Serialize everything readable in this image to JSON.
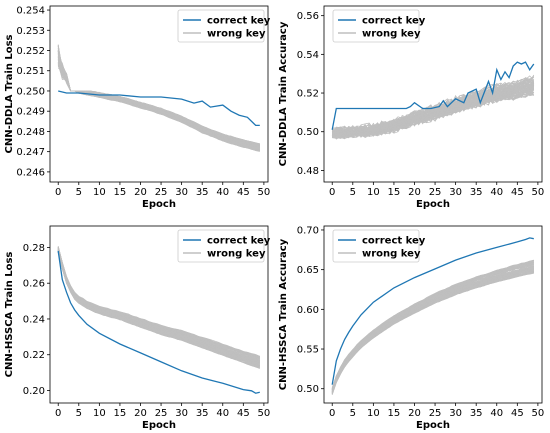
{
  "chart_data": [
    {
      "type": "line",
      "xlabel": "Epoch",
      "ylabel": "CNN-DDLA Train Loss",
      "xlim": [
        -2,
        51
      ],
      "ylim": [
        0.2455,
        0.2542
      ],
      "xticks": [
        0,
        5,
        10,
        15,
        20,
        25,
        30,
        35,
        40,
        45,
        50
      ],
      "yticks": [
        0.246,
        0.247,
        0.248,
        0.249,
        0.25,
        0.251,
        0.252,
        0.253,
        0.254
      ],
      "ytick_labels": [
        "0.246",
        "0.247",
        "0.248",
        "0.249",
        "0.250",
        "0.251",
        "0.252",
        "0.253",
        "0.254"
      ],
      "legend": "top-right",
      "grid": false,
      "series": [
        {
          "name": "correct key",
          "color": "#1f77b4",
          "x": [
            0,
            2,
            5,
            10,
            15,
            20,
            25,
            30,
            33,
            35,
            37,
            40,
            42,
            44,
            46,
            48,
            49
          ],
          "y": [
            0.25,
            0.2499,
            0.2499,
            0.2498,
            0.2498,
            0.2497,
            0.2497,
            0.2496,
            0.2494,
            0.2495,
            0.2492,
            0.2493,
            0.249,
            0.2488,
            0.2487,
            0.2483,
            0.2483
          ]
        },
        {
          "name": "wrong key",
          "color": "#bfbfbf",
          "x": [
            0,
            1,
            3,
            5,
            10,
            15,
            20,
            25,
            30,
            35,
            40,
            45,
            49
          ],
          "y": [
            0.2515,
            0.2508,
            0.2503,
            0.25,
            0.2498,
            0.2496,
            0.2493,
            0.249,
            0.2486,
            0.2481,
            0.2477,
            0.2474,
            0.2472
          ]
        }
      ]
    },
    {
      "type": "line",
      "xlabel": "Epoch",
      "ylabel": "CNN-DDLA Train Accuracy",
      "xlim": [
        -2,
        51
      ],
      "ylim": [
        0.474,
        0.565
      ],
      "xticks": [
        0,
        5,
        10,
        15,
        20,
        25,
        30,
        35,
        40,
        45,
        50
      ],
      "yticks": [
        0.48,
        0.5,
        0.52,
        0.54,
        0.56
      ],
      "ytick_labels": [
        "0.48",
        "0.50",
        "0.52",
        "0.54",
        "0.56"
      ],
      "legend": "top-center",
      "grid": false,
      "series": [
        {
          "name": "correct key",
          "color": "#1f77b4",
          "x": [
            0,
            1,
            2,
            5,
            10,
            15,
            18,
            19,
            20,
            22,
            24,
            26,
            27,
            28,
            30,
            32,
            33,
            35,
            36,
            38,
            39,
            40,
            41,
            42,
            43,
            44,
            45,
            46,
            47,
            48,
            49
          ],
          "y": [
            0.501,
            0.512,
            0.512,
            0.512,
            0.512,
            0.512,
            0.512,
            0.513,
            0.515,
            0.512,
            0.512,
            0.513,
            0.516,
            0.513,
            0.517,
            0.515,
            0.52,
            0.522,
            0.515,
            0.526,
            0.52,
            0.532,
            0.527,
            0.531,
            0.528,
            0.534,
            0.536,
            0.535,
            0.536,
            0.532,
            0.535
          ]
        },
        {
          "name": "wrong key",
          "color": "#bfbfbf",
          "x": [
            0,
            5,
            10,
            15,
            20,
            25,
            30,
            35,
            40,
            45,
            49
          ],
          "y": [
            0.499,
            0.5,
            0.501,
            0.503,
            0.507,
            0.51,
            0.514,
            0.517,
            0.52,
            0.522,
            0.524
          ]
        }
      ]
    },
    {
      "type": "line",
      "xlabel": "Epoch",
      "ylabel": "CNN-HSSCA Train Loss",
      "xlim": [
        -2,
        51
      ],
      "ylim": [
        0.193,
        0.292
      ],
      "xticks": [
        0,
        5,
        10,
        15,
        20,
        25,
        30,
        35,
        40,
        45,
        50
      ],
      "yticks": [
        0.2,
        0.22,
        0.24,
        0.26,
        0.28
      ],
      "ytick_labels": [
        "0.20",
        "0.22",
        "0.24",
        "0.26",
        "0.28"
      ],
      "legend": "top-right",
      "grid": false,
      "series": [
        {
          "name": "correct key",
          "color": "#1f77b4",
          "x": [
            0,
            1,
            2,
            3,
            4,
            5,
            7,
            10,
            15,
            20,
            25,
            30,
            35,
            40,
            45,
            47,
            48,
            49
          ],
          "y": [
            0.278,
            0.262,
            0.255,
            0.249,
            0.245,
            0.242,
            0.237,
            0.232,
            0.226,
            0.221,
            0.216,
            0.211,
            0.207,
            0.204,
            0.2005,
            0.1998,
            0.1985,
            0.199
          ]
        },
        {
          "name": "wrong key",
          "color": "#bfbfbf",
          "x": [
            0,
            1,
            2,
            3,
            4,
            5,
            7,
            10,
            15,
            20,
            25,
            30,
            35,
            40,
            45,
            49
          ],
          "y": [
            0.279,
            0.27,
            0.262,
            0.257,
            0.253,
            0.251,
            0.248,
            0.245,
            0.242,
            0.238,
            0.234,
            0.231,
            0.227,
            0.223,
            0.219,
            0.216
          ]
        }
      ]
    },
    {
      "type": "line",
      "xlabel": "Epoch",
      "ylabel": "CNN-HSSCA Train Accuracy",
      "xlim": [
        -2,
        51
      ],
      "ylim": [
        0.482,
        0.705
      ],
      "xticks": [
        0,
        5,
        10,
        15,
        20,
        25,
        30,
        35,
        40,
        45,
        50
      ],
      "yticks": [
        0.5,
        0.55,
        0.6,
        0.65,
        0.7
      ],
      "ytick_labels": [
        "0.50",
        "0.55",
        "0.60",
        "0.65",
        "0.70"
      ],
      "legend": "top-left",
      "grid": false,
      "series": [
        {
          "name": "correct key",
          "color": "#1f77b4",
          "x": [
            0,
            1,
            2,
            3,
            4,
            5,
            7,
            10,
            15,
            20,
            25,
            30,
            35,
            40,
            45,
            47,
            48,
            49
          ],
          "y": [
            0.505,
            0.535,
            0.55,
            0.562,
            0.571,
            0.579,
            0.593,
            0.609,
            0.627,
            0.64,
            0.651,
            0.662,
            0.671,
            0.678,
            0.685,
            0.688,
            0.69,
            0.689
          ]
        },
        {
          "name": "wrong key",
          "color": "#bfbfbf",
          "x": [
            0,
            1,
            2,
            3,
            4,
            5,
            7,
            10,
            15,
            20,
            25,
            30,
            35,
            40,
            45,
            49
          ],
          "y": [
            0.497,
            0.512,
            0.523,
            0.532,
            0.539,
            0.545,
            0.556,
            0.569,
            0.587,
            0.601,
            0.614,
            0.625,
            0.634,
            0.642,
            0.649,
            0.654
          ]
        }
      ]
    }
  ]
}
